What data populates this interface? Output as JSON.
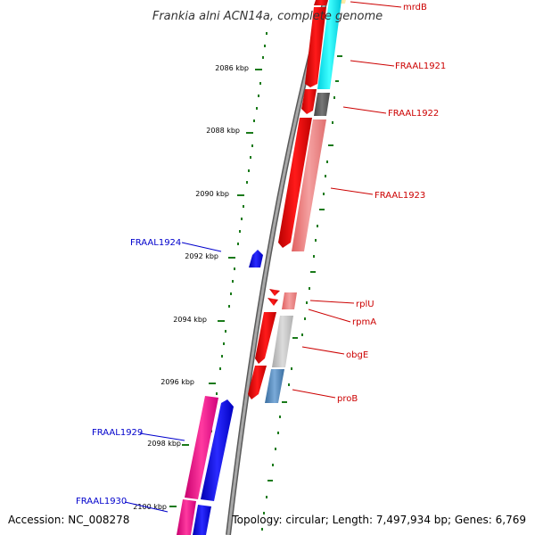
{
  "title": "Frankia alni ACN14a, complete genome",
  "accession": "Accession: NC_008278",
  "topology": "Topology: circular; Length: 7,497,934 bp; Genes: 6,769",
  "colors": {
    "backbone": "#8c8c8c",
    "tick": "#1a7a1a",
    "label_red": "#cc0000",
    "label_blue": "#0000cc",
    "leader_red": "#cc0000",
    "leader_blue": "#0000cc"
  },
  "ticks": [
    {
      "label": "2086 kbp"
    },
    {
      "label": "2088 kbp"
    },
    {
      "label": "2090 kbp"
    },
    {
      "label": "2092 kbp"
    },
    {
      "label": "2094 kbp"
    },
    {
      "label": "2096 kbp"
    },
    {
      "label": "2098 kbp"
    },
    {
      "label": "2100 kbp"
    }
  ],
  "genes": [
    {
      "name": "mrdB",
      "color": "#cc0000"
    },
    {
      "name": "FRAAL1921",
      "color": "#cc0000"
    },
    {
      "name": "FRAAL1922",
      "color": "#cc0000"
    },
    {
      "name": "FRAAL1923",
      "color": "#cc0000"
    },
    {
      "name": "FRAAL1924",
      "color": "#0000cc"
    },
    {
      "name": "rplU",
      "color": "#cc0000"
    },
    {
      "name": "rpmA",
      "color": "#cc0000"
    },
    {
      "name": "obgE",
      "color": "#cc0000"
    },
    {
      "name": "proB",
      "color": "#cc0000"
    },
    {
      "name": "FRAAL1929",
      "color": "#0000cc"
    },
    {
      "name": "FRAAL1930",
      "color": "#0000cc"
    }
  ]
}
